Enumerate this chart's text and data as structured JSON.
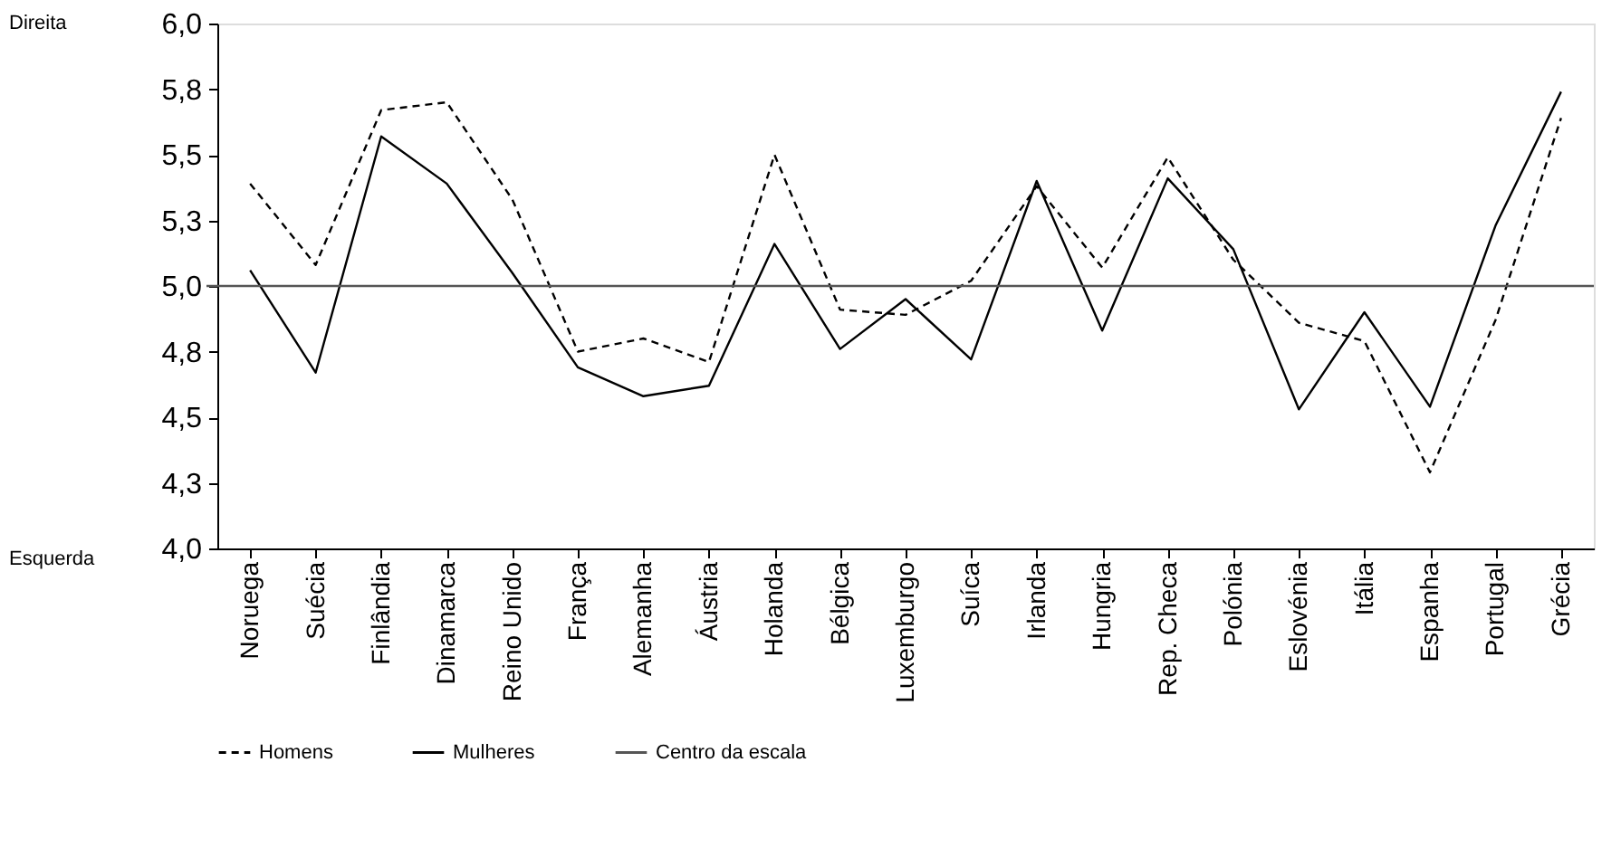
{
  "chart_data": {
    "type": "line",
    "categories": [
      "Noruega",
      "Suécia",
      "Finlândia",
      "Dinamarca",
      "Reino Unido",
      "França",
      "Alemanha",
      "Áustria",
      "Holanda",
      "Bélgica",
      "Luxemburgo",
      "Suíca",
      "Irlanda",
      "Hungria",
      "Rep. Checa",
      "Polónia",
      "Eslovénia",
      "Itália",
      "Espanha",
      "Portugal",
      "Grécia"
    ],
    "series": [
      {
        "name": "Homens",
        "color": "#000000",
        "line_style": "dashed",
        "values": [
          5.39,
          5.08,
          5.67,
          5.7,
          5.33,
          4.75,
          4.8,
          4.71,
          5.5,
          4.91,
          4.89,
          5.02,
          5.38,
          5.07,
          5.49,
          5.1,
          4.86,
          4.79,
          4.29,
          4.87,
          5.64
        ]
      },
      {
        "name": "Mulheres",
        "color": "#000000",
        "line_style": "solid",
        "values": [
          5.06,
          4.67,
          5.57,
          5.39,
          5.05,
          4.69,
          4.58,
          4.62,
          5.16,
          4.76,
          4.95,
          4.72,
          5.4,
          4.83,
          5.41,
          5.14,
          4.53,
          4.9,
          4.54,
          5.23,
          5.74
        ]
      }
    ],
    "ylim": [
      4.0,
      6.0
    ],
    "yticks": [
      {
        "value": 4.0,
        "label": "4,0"
      },
      {
        "value": 4.25,
        "label": "4,3"
      },
      {
        "value": 4.5,
        "label": "4,5"
      },
      {
        "value": 4.75,
        "label": "4,8"
      },
      {
        "value": 5.0,
        "label": "5,0"
      },
      {
        "value": 5.25,
        "label": "5,3"
      },
      {
        "value": 5.5,
        "label": "5,5"
      },
      {
        "value": 5.75,
        "label": "5,8"
      },
      {
        "value": 6.0,
        "label": "6,0"
      }
    ],
    "ref_lines": [
      {
        "axis": "y",
        "value": 5.0,
        "label": "Centro da escala",
        "color": "#555555",
        "line_style": "solid"
      }
    ],
    "annotations": [
      "Direita",
      "Esquerda"
    ],
    "legend": "bottom",
    "grid": false,
    "marker": "none"
  }
}
